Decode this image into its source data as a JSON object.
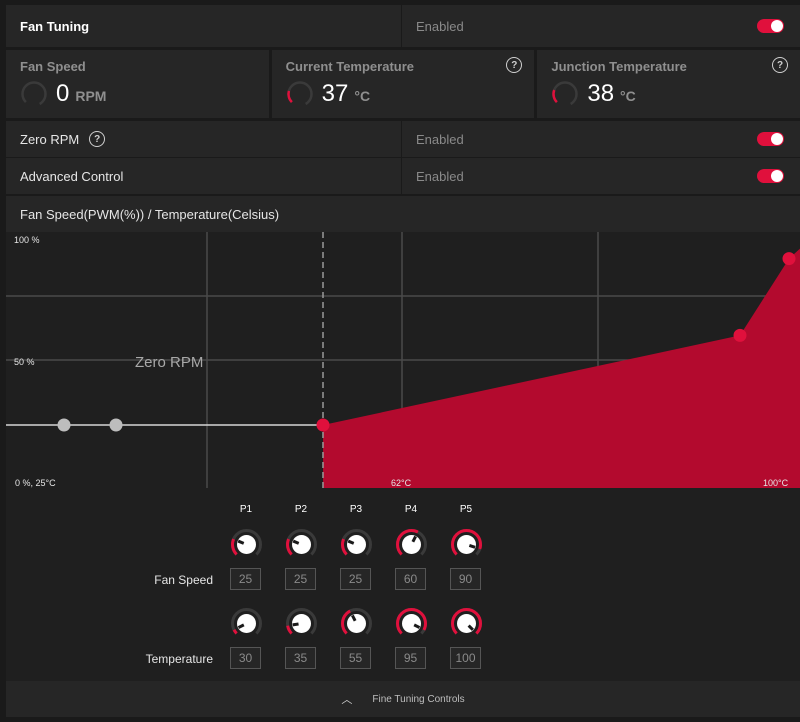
{
  "fan_tuning": {
    "title": "Fan Tuning",
    "status": "Enabled"
  },
  "stats": [
    {
      "label": "Fan Speed",
      "value": "0",
      "unit": "RPM"
    },
    {
      "label": "Current Temperature",
      "value": "37",
      "unit": "°C"
    },
    {
      "label": "Junction Temperature",
      "value": "38",
      "unit": "°C"
    }
  ],
  "zero_rpm": {
    "label": "Zero RPM",
    "status": "Enabled"
  },
  "advanced_control": {
    "label": "Advanced Control",
    "status": "Enabled"
  },
  "chart": {
    "header": "Fan Speed(PWM(%)) / Temperature(Celsius)",
    "y_top": "100 %",
    "y_mid": "50 %",
    "origin": "0 %, 25°C",
    "x_mid": "62°C",
    "x_max": "100°C",
    "zero_rpm_label": "Zero RPM",
    "accent": "#e0103c"
  },
  "chart_data": {
    "type": "area",
    "xlim": [
      25,
      100
    ],
    "ylim": [
      0,
      100
    ],
    "zero_rpm_threshold": 55,
    "points": [
      {
        "x": 30,
        "y": 25
      },
      {
        "x": 35,
        "y": 25
      },
      {
        "x": 55,
        "y": 25
      },
      {
        "x": 95,
        "y": 60
      },
      {
        "x": 100,
        "y": 90
      }
    ]
  },
  "points": {
    "labels": [
      "P1",
      "P2",
      "P3",
      "P4",
      "P5"
    ],
    "fan_speed": [
      25,
      25,
      25,
      60,
      90
    ],
    "temperature": [
      30,
      35,
      55,
      95,
      100
    ]
  },
  "controls": {
    "fan_speed_label": "Fan Speed",
    "temperature_label": "Temperature"
  },
  "footer": {
    "label": "Fine Tuning Controls"
  }
}
